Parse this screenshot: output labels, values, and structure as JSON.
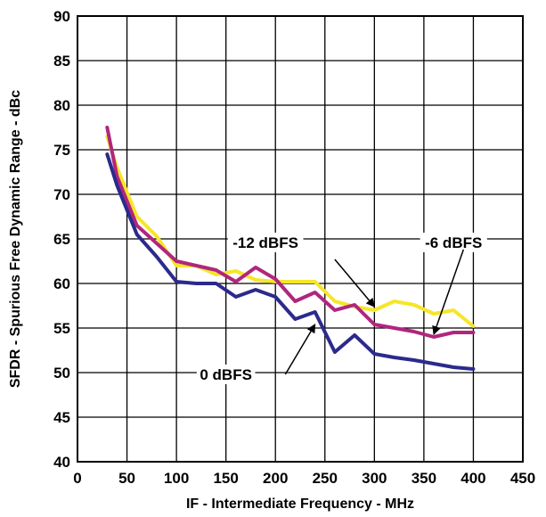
{
  "chart_data": {
    "type": "line",
    "title": "",
    "xlabel": "IF - Intermediate Frequency - MHz",
    "ylabel": "SFDR - Spurious Free Dynamic Range - dBc",
    "xlim": [
      0,
      450
    ],
    "ylim": [
      40,
      90
    ],
    "x_ticks": [
      "0",
      "50",
      "100",
      "150",
      "200",
      "250",
      "300",
      "350",
      "400",
      "450"
    ],
    "y_ticks": [
      "40",
      "45",
      "50",
      "55",
      "60",
      "65",
      "70",
      "75",
      "80",
      "85",
      "90"
    ],
    "grid": true,
    "series": [
      {
        "name": "0 dBFS",
        "color": "#2b2a8c",
        "x": [
          30,
          40,
          60,
          80,
          100,
          120,
          140,
          160,
          180,
          200,
          220,
          240,
          260,
          280,
          300,
          320,
          340,
          360,
          380,
          400
        ],
        "y": [
          74.5,
          71,
          65.5,
          63,
          60.2,
          60,
          60,
          58.5,
          59.3,
          58.5,
          56,
          56.8,
          52.3,
          54.2,
          52.1,
          51.7,
          51.4,
          51.0,
          50.6,
          50.4
        ]
      },
      {
        "name": "-6 dBFS",
        "color": "#b0267e",
        "x": [
          30,
          40,
          60,
          80,
          100,
          120,
          140,
          160,
          180,
          200,
          220,
          240,
          260,
          280,
          300,
          320,
          340,
          360,
          380,
          400
        ],
        "y": [
          77.5,
          72,
          66.5,
          64.5,
          62.5,
          62,
          61.5,
          60.2,
          61.8,
          60.5,
          58,
          59,
          57,
          57.6,
          55.4,
          55.0,
          54.6,
          54.0,
          54.5,
          54.5
        ]
      },
      {
        "name": "-12 dBFS",
        "color": "#f5e62a",
        "x": [
          30,
          40,
          60,
          80,
          100,
          120,
          140,
          160,
          180,
          200,
          220,
          240,
          260,
          280,
          300,
          320,
          340,
          360,
          380,
          400
        ],
        "y": [
          76.5,
          73,
          67.5,
          65.3,
          62,
          62,
          61,
          61.4,
          60.4,
          60.2,
          60.2,
          60.2,
          58,
          57.4,
          57,
          58,
          57.6,
          56.6,
          57,
          55.2
        ]
      }
    ],
    "annotations": [
      {
        "text": "-12 dBFS",
        "tx": 190,
        "ty": 64.6,
        "ax": 260,
        "ay": 62.7,
        "hx": 300,
        "hy": 57.4
      },
      {
        "text": "-6 dBFS",
        "tx": 380,
        "ty": 64.6,
        "ax": 390,
        "ay": 63.8,
        "hx": 360,
        "hy": 54.3
      },
      {
        "text": "0 dBFS",
        "tx": 150,
        "ty": 49.8,
        "ax": 210,
        "ay": 49.8,
        "hx": 240,
        "hy": 55.4
      }
    ]
  }
}
